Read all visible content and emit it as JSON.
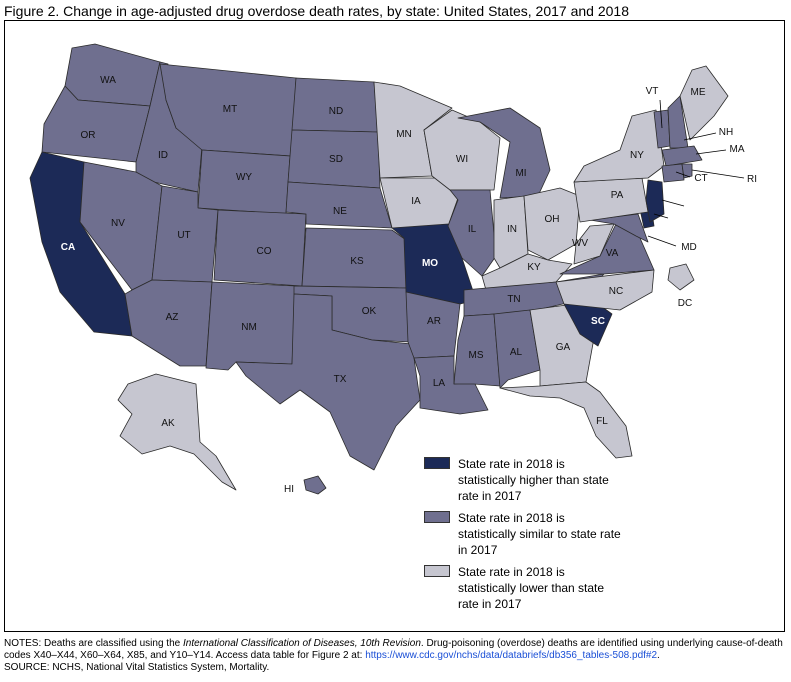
{
  "title": "Figure 2. Change in age-adjusted drug overdose death rates, by state: United States, 2017 and 2018",
  "colors": {
    "higher": "#1c2a57",
    "similar": "#6f6f8f",
    "lower": "#c6c6d0"
  },
  "legend": [
    {
      "category": "higher",
      "text": "State rate in 2018 is statistically higher than state rate in 2017"
    },
    {
      "category": "similar",
      "text": "State rate in 2018 is statistically similar to state rate in 2017"
    },
    {
      "category": "lower",
      "text": "State rate in 2018 is statistically lower than state rate in 2017"
    }
  ],
  "states": {
    "WA": "similar",
    "OR": "similar",
    "CA": "higher",
    "ID": "similar",
    "NV": "similar",
    "MT": "similar",
    "WY": "similar",
    "UT": "similar",
    "AZ": "similar",
    "CO": "similar",
    "NM": "similar",
    "ND": "similar",
    "SD": "similar",
    "NE": "similar",
    "KS": "similar",
    "OK": "similar",
    "TX": "similar",
    "MN": "lower",
    "IA": "lower",
    "MO": "higher",
    "AR": "similar",
    "LA": "similar",
    "WI": "lower",
    "IL": "similar",
    "MI": "similar",
    "IN": "lower",
    "OH": "lower",
    "KY": "lower",
    "TN": "similar",
    "MS": "similar",
    "AL": "similar",
    "GA": "lower",
    "FL": "lower",
    "SC": "higher",
    "NC": "lower",
    "VA": "similar",
    "WV": "lower",
    "PA": "lower",
    "NY": "lower",
    "VT": "similar",
    "NH": "similar",
    "ME": "lower",
    "MA": "similar",
    "RI": "similar",
    "CT": "similar",
    "NJ": "higher",
    "DE": "higher",
    "MD": "similar",
    "DC": "lower",
    "AK": "lower",
    "HI": "similar"
  },
  "notes": {
    "prefix": "NOTES: Deaths are classified using the ",
    "italic": "International Classification of Diseases, 10th Revision",
    "middle": ". Drug-poisoning (overdose) deaths are identified using underlying cause-of-death codes X40–X44, X60–X64, X85, and Y10–Y14. Access data table for Figure 2 at: ",
    "link": "https://www.cdc.gov/nchs/data/databriefs/db356_tables-508.pdf#2",
    "suffix": ".",
    "source": "SOURCE: NCHS, National Vital Statistics System, Mortality."
  }
}
